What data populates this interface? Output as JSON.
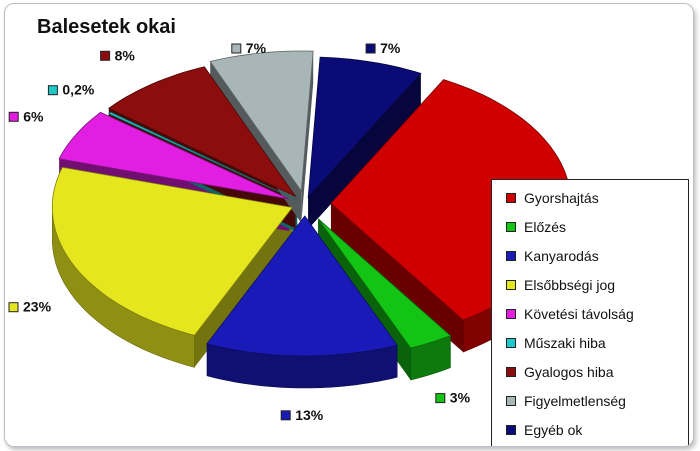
{
  "chart_data": {
    "type": "pie",
    "title": "Balesetek okai",
    "series": [
      {
        "name": "Gyorshajtás",
        "label": "33%",
        "value": 33,
        "color": "#d00000"
      },
      {
        "name": "Előzés",
        "label": "3%",
        "value": 3,
        "color": "#14c414"
      },
      {
        "name": "Kanyarodás",
        "label": "13%",
        "value": 13,
        "color": "#1a1ab8"
      },
      {
        "name": "Elsőbbségi jog",
        "label": "23%",
        "value": 23,
        "color": "#e6e61e"
      },
      {
        "name": "Követési távolság",
        "label": "6%",
        "value": 6,
        "color": "#e21ee2"
      },
      {
        "name": "Műszaki hiba",
        "label": "0,2%",
        "value": 0.2,
        "color": "#1ec8c8"
      },
      {
        "name": "Gyalogos hiba",
        "label": "8%",
        "value": 8,
        "color": "#8b0d0d"
      },
      {
        "name": "Figyelmetlenség",
        "label": "7%",
        "value": 7,
        "color": "#a9b6b8"
      },
      {
        "name": "Egyéb ok",
        "label": "7%",
        "value": 7,
        "color": "#0b0b78"
      }
    ],
    "legend_position": "right"
  }
}
